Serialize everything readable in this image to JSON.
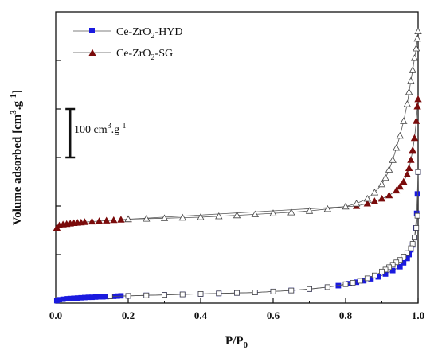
{
  "chart_data": {
    "type": "scatter",
    "xlabel": "P/P",
    "xlabel_sub": "0",
    "ylabel": "Volume adsorbed [cm",
    "ylabel_sup1": "3",
    "ylabel_mid": ".g",
    "ylabel_sup2": "-1",
    "ylabel_end": "]",
    "xlim": [
      0.0,
      1.0
    ],
    "ylim": [
      0,
      600
    ],
    "xticks": [
      0.0,
      0.2,
      0.4,
      0.6,
      0.8,
      1.0
    ],
    "xtick_labels": [
      "0.0",
      "0.2",
      "0.4",
      "0.6",
      "0.8",
      "1.0"
    ],
    "y_tick_values": [
      100,
      200,
      300,
      400,
      500
    ],
    "ytick_labels_shown": false,
    "grid": false,
    "legend_position": "top-left",
    "scale_bar": {
      "value": 100,
      "label_main": "100 cm",
      "label_sup1": "3",
      "label_mid": ".g",
      "label_sup2": "-1",
      "x": 0.04,
      "y_bottom": 300
    },
    "series": [
      {
        "name_main": "Ce-ZrO",
        "name_sub": "2",
        "name_end": "-HYD",
        "color": "#1a1adf",
        "marker": "square",
        "branches": [
          {
            "kind": "adsorption",
            "filled": true,
            "x": [
              0.003,
              0.01,
              0.02,
              0.03,
              0.04,
              0.05,
              0.06,
              0.07,
              0.08,
              0.09,
              0.1,
              0.11,
              0.12,
              0.13,
              0.14,
              0.15,
              0.16,
              0.17,
              0.18,
              0.2,
              0.25,
              0.3,
              0.35,
              0.4,
              0.45,
              0.5,
              0.55,
              0.6,
              0.65,
              0.7,
              0.75,
              0.78,
              0.81,
              0.83,
              0.85,
              0.87,
              0.89,
              0.91,
              0.93,
              0.95,
              0.96,
              0.97,
              0.975,
              0.98,
              0.985,
              0.99,
              0.993,
              0.996,
              0.998,
              1.0
            ],
            "y": [
              5,
              7,
              8,
              9,
              9.5,
              10,
              10.5,
              11,
              11.5,
              12,
              12,
              12.5,
              13,
              13,
              13.5,
              14,
              14,
              14.5,
              15,
              15,
              16,
              17,
              18,
              19,
              20,
              21,
              22,
              24,
              26,
              29,
              33,
              36,
              40,
              43,
              46,
              50,
              54,
              60,
              67,
              75,
              83,
              92,
              100,
              110,
              120,
              135,
              155,
              185,
              225,
              270
            ]
          },
          {
            "kind": "desorption",
            "filled": false,
            "x": [
              1.0,
              0.998,
              0.995,
              0.99,
              0.985,
              0.98,
              0.97,
              0.96,
              0.95,
              0.94,
              0.93,
              0.92,
              0.91,
              0.9,
              0.88,
              0.86,
              0.84,
              0.82,
              0.8,
              0.75,
              0.7,
              0.65,
              0.6,
              0.55,
              0.5,
              0.45,
              0.4,
              0.35,
              0.3,
              0.25,
              0.2,
              0.15
            ],
            "y": [
              270,
              180,
              155,
              135,
              122,
              113,
              103,
              96,
              89,
              84,
              79,
              74,
              69,
              65,
              57,
              51,
              46,
              42,
              39,
              33,
              29,
              26,
              24,
              22,
              21,
              20,
              19,
              18,
              17,
              16,
              15,
              14
            ]
          }
        ]
      },
      {
        "name_main": "Ce-ZrO",
        "name_sub": "2",
        "name_end": "-SG",
        "color": "#7a0b0b",
        "marker": "triangle",
        "branches": [
          {
            "kind": "adsorption",
            "filled": true,
            "x": [
              0.003,
              0.01,
              0.02,
              0.03,
              0.04,
              0.05,
              0.06,
              0.07,
              0.08,
              0.1,
              0.12,
              0.14,
              0.16,
              0.18,
              0.2,
              0.83,
              0.86,
              0.88,
              0.9,
              0.92,
              0.94,
              0.95,
              0.96,
              0.97,
              0.975,
              0.98,
              0.985,
              0.99,
              0.995,
              0.998,
              1.0
            ],
            "y": [
              155,
              160,
              162,
              163,
              164,
              165,
              165.5,
              166,
              167,
              168,
              169,
              170,
              171,
              172,
              173,
              200,
              205,
              210,
              215,
              222,
              232,
              240,
              250,
              265,
              278,
              295,
              315,
              340,
              375,
              405,
              420
            ]
          },
          {
            "kind": "desorption",
            "filled": false,
            "x": [
              1.0,
              0.998,
              0.995,
              0.99,
              0.985,
              0.98,
              0.975,
              0.97,
              0.96,
              0.95,
              0.94,
              0.93,
              0.92,
              0.91,
              0.9,
              0.88,
              0.86,
              0.83,
              0.8,
              0.75,
              0.7,
              0.65,
              0.6,
              0.55,
              0.5,
              0.45,
              0.4,
              0.35,
              0.3,
              0.25,
              0.2
            ],
            "y": [
              560,
              545,
              525,
              505,
              480,
              458,
              435,
              410,
              375,
              345,
              320,
              295,
              275,
              258,
              245,
              228,
              215,
              205,
              199,
              194,
              190,
              187,
              185,
              183,
              181,
              179,
              177,
              176,
              175,
              174,
              173
            ]
          }
        ]
      }
    ]
  }
}
